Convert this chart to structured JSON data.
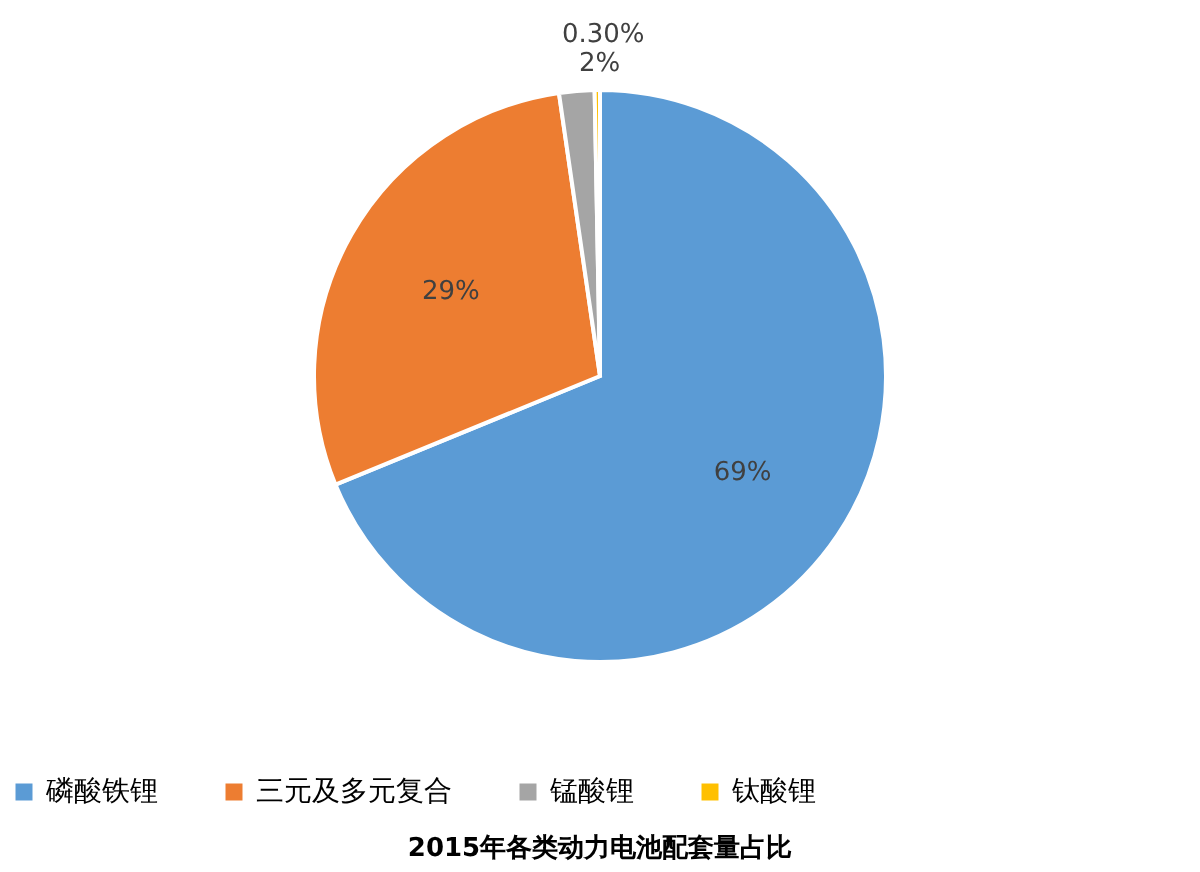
{
  "chart_data": {
    "type": "pie",
    "title": "2015年各类动力电池配套量占比",
    "categories": [
      "磷酸铁锂",
      "三元及多元复合",
      "锰酸锂",
      "钛酸锂"
    ],
    "values": [
      69,
      29,
      2,
      0.3
    ],
    "value_labels": [
      "69%",
      "29%",
      "2%",
      "0.30%"
    ],
    "colors": [
      "#5b9bd5",
      "#ed7d31",
      "#a5a5a5",
      "#ffc000"
    ],
    "legend": "bottom"
  }
}
